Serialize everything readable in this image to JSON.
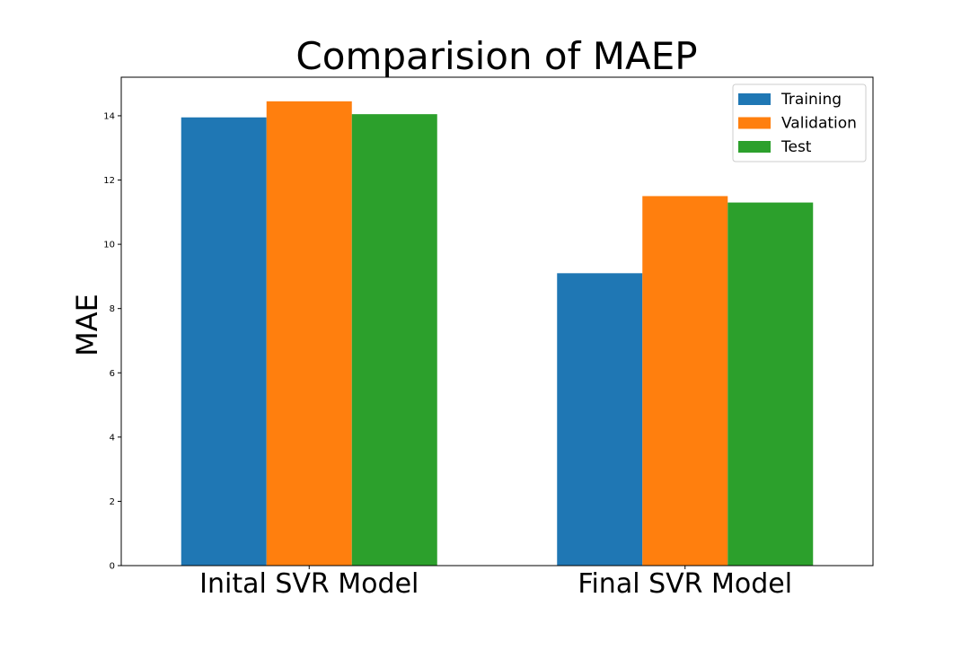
{
  "chart_data": {
    "type": "bar",
    "title": "Comparision of MAEP",
    "xlabel": "",
    "ylabel": "MAE",
    "categories": [
      "Inital SVR Model",
      "Final SVR Model"
    ],
    "series": [
      {
        "name": "Training",
        "color": "#1f77b4",
        "values": [
          13.95,
          9.1
        ]
      },
      {
        "name": "Validation",
        "color": "#ff7f0e",
        "values": [
          14.45,
          11.5
        ]
      },
      {
        "name": "Test",
        "color": "#2ca02c",
        "values": [
          14.05,
          11.3
        ]
      }
    ],
    "ylim": [
      0,
      15.2
    ],
    "yticks": [
      0,
      2,
      4,
      6,
      8,
      10,
      12,
      14
    ],
    "grid": false,
    "legend_position": "top-right"
  }
}
